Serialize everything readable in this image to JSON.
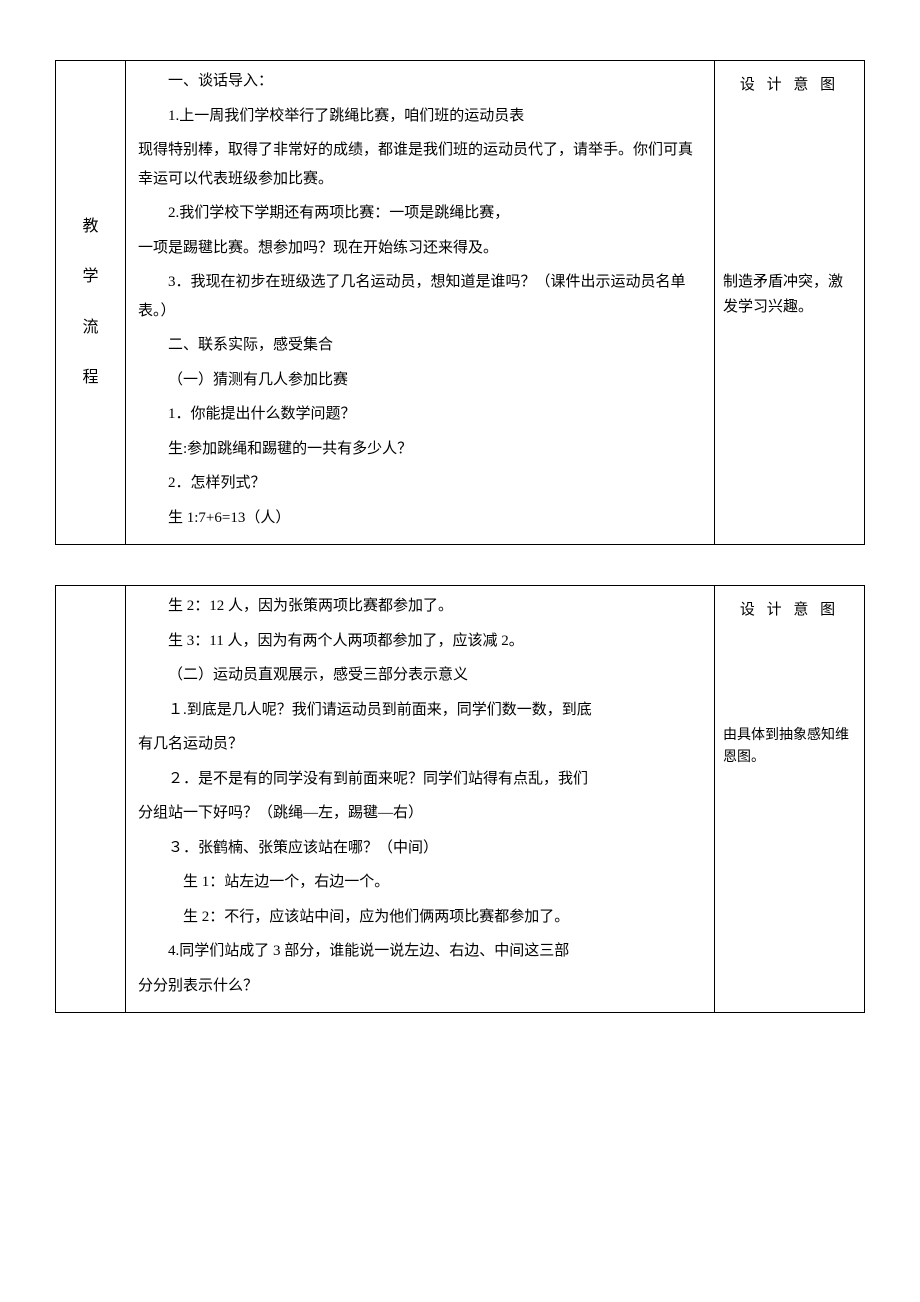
{
  "table1": {
    "rowLabel": [
      "教",
      "学",
      "流",
      "程"
    ],
    "content": [
      {
        "indent": "i1",
        "text": "一、谈话导入："
      },
      {
        "indent": "i1",
        "text": "1.上一周我们学校举行了跳绳比赛，咱们班的运动员表"
      },
      {
        "indent": "",
        "text": "现得特别棒，取得了非常好的成绩，都谁是我们班的运动员代了，请举手。你们可真幸运可以代表班级参加比赛。"
      },
      {
        "indent": "i1",
        "text": "2.我们学校下学期还有两项比赛：一项是跳绳比赛，"
      },
      {
        "indent": "",
        "text": "一项是踢毽比赛。想参加吗？现在开始练习还来得及。"
      },
      {
        "indent": "i1",
        "text": "3．我现在初步在班级选了几名运动员，想知道是谁吗？（课件出示运动员名单表。）"
      },
      {
        "indent": "i1",
        "text": "二、联系实际，感受集合"
      },
      {
        "indent": "i1",
        "text": "（一）猜测有几人参加比赛"
      },
      {
        "indent": "i1",
        "text": "1．你能提出什么数学问题？"
      },
      {
        "indent": "i1",
        "text": "生:参加跳绳和踢毽的一共有多少人？"
      },
      {
        "indent": "i1",
        "text": "2．怎样列式？"
      },
      {
        "indent": "i1",
        "text": "生 1:7+6=13（人）"
      }
    ],
    "intentHeader": "设 计 意 图",
    "intentNote": "制造矛盾冲突，激发学习兴趣。"
  },
  "table2": {
    "content": [
      {
        "indent": "i1",
        "text": "生 2：12 人，因为张策两项比赛都参加了。"
      },
      {
        "indent": "i1",
        "text": "生 3：11 人，因为有两个人两项都参加了，应该减 2。"
      },
      {
        "indent": "i1",
        "text": "（二）运动员直观展示，感受三部分表示意义"
      },
      {
        "indent": "i1",
        "text": "１.到底是几人呢？我们请运动员到前面来，同学们数一数，到底"
      },
      {
        "indent": "",
        "text": "有几名运动员？"
      },
      {
        "indent": "i1",
        "text": "２．是不是有的同学没有到前面来呢？同学们站得有点乱，我们"
      },
      {
        "indent": "",
        "text": "分组站一下好吗？（跳绳—左，踢毽—右）"
      },
      {
        "indent": "i1",
        "text": "３．张鹤楠、张策应该站在哪？（中间）"
      },
      {
        "indent": "i2",
        "text": "生 1：站左边一个，右边一个。"
      },
      {
        "indent": "i2",
        "text": "生 2：不行，应该站中间，应为他们俩两项比赛都参加了。"
      },
      {
        "indent": "i1",
        "text": "4.同学们站成了 3 部分，谁能说一说左边、右边、中间这三部"
      },
      {
        "indent": "",
        "text": "分分别表示什么？"
      }
    ],
    "intentHeader": "设 计 意 图",
    "intentNote": "由具体到抽象感知维恩图。"
  }
}
